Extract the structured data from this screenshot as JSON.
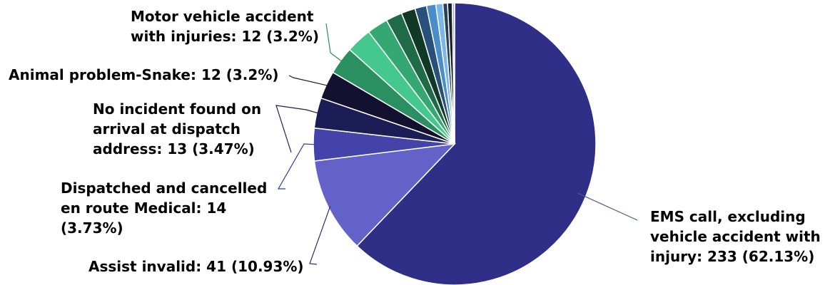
{
  "chart_data": {
    "type": "pie",
    "title": "",
    "slices": [
      {
        "label": "EMS call, excluding vehicle accident with injury",
        "value": 233,
        "percent": 62.13,
        "color": "#2f2f87"
      },
      {
        "label": "Assist invalid",
        "value": 41,
        "percent": 10.93,
        "color": "#6262c9"
      },
      {
        "label": "Dispatched and cancelled en route Medical",
        "value": 14,
        "percent": 3.73,
        "color": "#4343a9"
      },
      {
        "label": "No incident found on arrival at dispatch address",
        "value": 13,
        "percent": 3.47,
        "color": "#1c1c57"
      },
      {
        "label": "Animal problem-Snake",
        "value": 12,
        "percent": 3.2,
        "color": "#121230"
      },
      {
        "label": "Motor vehicle accident with injuries",
        "value": 12,
        "percent": 3.2,
        "color": "#2a8f61"
      },
      {
        "label": "",
        "value": 11,
        "percent": 2.93,
        "color": "#45c890"
      },
      {
        "label": "",
        "value": 9,
        "percent": 2.4,
        "color": "#34a773"
      },
      {
        "label": "",
        "value": 7,
        "percent": 1.87,
        "color": "#1f6b48"
      },
      {
        "label": "",
        "value": 6,
        "percent": 1.6,
        "color": "#103a27"
      },
      {
        "label": "",
        "value": 5,
        "percent": 1.33,
        "color": "#27507a"
      },
      {
        "label": "",
        "value": 4,
        "percent": 1.07,
        "color": "#4a8dc8"
      },
      {
        "label": "",
        "value": 3,
        "percent": 0.8,
        "color": "#79b8e8"
      },
      {
        "label": "",
        "value": 2,
        "percent": 0.53,
        "color": "#2a4059"
      },
      {
        "label": "",
        "value": 2,
        "percent": 0.53,
        "color": "#15202c"
      },
      {
        "label": "",
        "value": 1,
        "percent": 0.27,
        "color": "#aab0ba"
      }
    ],
    "labels": [
      {
        "slice": 0,
        "lines": [
          "EMS call, excluding",
          "vehicle accident with",
          "injury: 233 (62.13%)"
        ]
      },
      {
        "slice": 1,
        "lines": [
          "Assist invalid: 41 (10.93%)"
        ]
      },
      {
        "slice": 2,
        "lines": [
          "Dispatched and cancelled",
          "en route Medical: 14",
          "(3.73%)"
        ]
      },
      {
        "slice": 3,
        "lines": [
          "No incident found on",
          "arrival at dispatch",
          "address: 13 (3.47%)"
        ]
      },
      {
        "slice": 4,
        "lines": [
          "Animal problem-Snake: 12 (3.2%)"
        ]
      },
      {
        "slice": 5,
        "lines": [
          "Motor vehicle accident",
          "with injuries: 12 (3.2%)"
        ]
      }
    ],
    "legend": "none"
  }
}
